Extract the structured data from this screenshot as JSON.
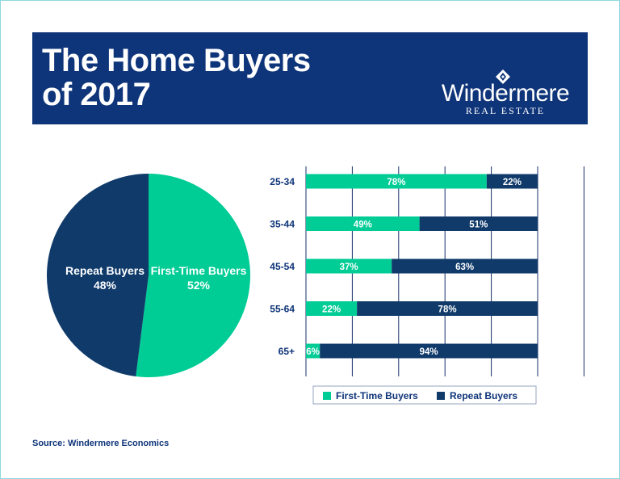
{
  "header": {
    "title_line1": "The Home Buyers",
    "title_line2": "of 2017",
    "logo_name": "Windermere",
    "logo_sub": "REAL ESTATE",
    "logo_icon": "diamond-logo-icon"
  },
  "colors": {
    "navy": "#0e3479",
    "dark_navy": "#0f3a6a",
    "teal": "#00cc95",
    "grid": "#16306a"
  },
  "chart_data": [
    {
      "type": "pie",
      "slices": [
        {
          "label": "First-Time Buyers",
          "value": 52,
          "display": "52%"
        },
        {
          "label": "Repeat Buyers",
          "value": 48,
          "display": "48%"
        }
      ]
    },
    {
      "type": "bar",
      "orientation": "horizontal",
      "stacked": true,
      "categories": [
        "25-34",
        "35-44",
        "45-54",
        "55-64",
        "65+"
      ],
      "series": [
        {
          "name": "First-Time Buyers",
          "values": [
            78,
            49,
            37,
            22,
            6
          ],
          "labels": [
            "78%",
            "49%",
            "37%",
            "22%",
            "6%"
          ]
        },
        {
          "name": "Repeat Buyers",
          "values": [
            22,
            51,
            63,
            78,
            94
          ],
          "labels": [
            "22%",
            "51%",
            "63%",
            "78%",
            "94%"
          ]
        }
      ],
      "xlim": [
        0,
        100
      ],
      "grid": true,
      "legend": "bottom"
    }
  ],
  "source": "Source: Windermere Economics"
}
